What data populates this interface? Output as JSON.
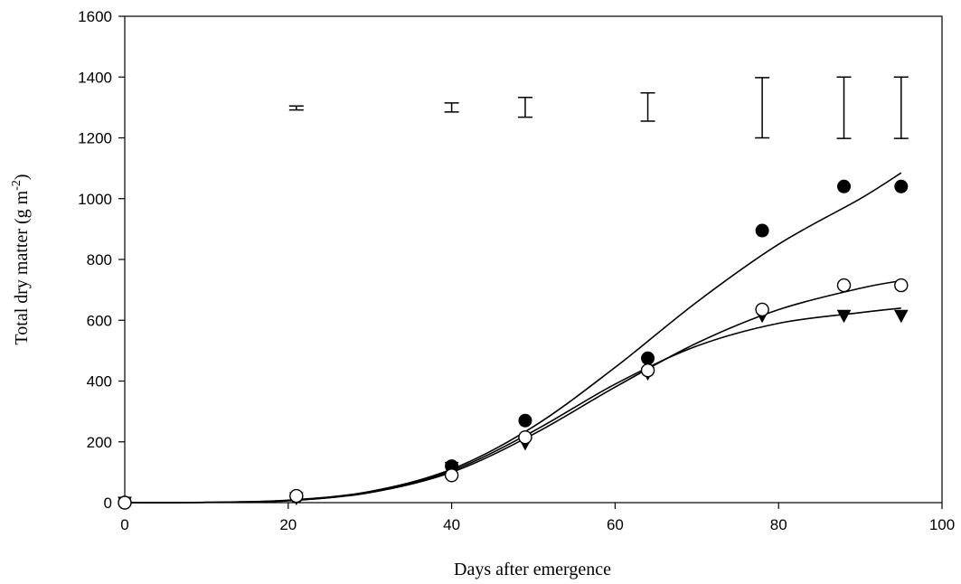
{
  "chart_data": {
    "type": "scatter",
    "title": "",
    "xlabel": "Days after emergence",
    "ylabel_main": "Total dry matter (g m",
    "ylabel_sup": "-2",
    "ylabel_tail": ")",
    "xlim": [
      0,
      100
    ],
    "ylim": [
      0,
      1600
    ],
    "xticks": [
      0,
      20,
      40,
      60,
      80,
      100
    ],
    "yticks": [
      0,
      200,
      400,
      600,
      800,
      1000,
      1200,
      1400,
      1600
    ],
    "grid": false,
    "legend": "none",
    "series": [
      {
        "marker": "filled-circle",
        "x": [
          0,
          21,
          40,
          49,
          64,
          78,
          88,
          95
        ],
        "y": [
          0,
          20,
          120,
          270,
          475,
          895,
          1040,
          1040
        ],
        "fit": [
          [
            0,
            0
          ],
          [
            10,
            1
          ],
          [
            20,
            8
          ],
          [
            30,
            37
          ],
          [
            40,
            110
          ],
          [
            50,
            250
          ],
          [
            60,
            445
          ],
          [
            70,
            660
          ],
          [
            80,
            850
          ],
          [
            90,
            1000
          ],
          [
            95,
            1085
          ]
        ]
      },
      {
        "marker": "open-circle",
        "x": [
          0,
          21,
          40,
          49,
          64,
          78,
          88,
          95
        ],
        "y": [
          0,
          22,
          90,
          215,
          435,
          635,
          715,
          715
        ],
        "fit": [
          [
            0,
            0
          ],
          [
            10,
            1
          ],
          [
            20,
            7
          ],
          [
            30,
            33
          ],
          [
            40,
            100
          ],
          [
            50,
            225
          ],
          [
            60,
            380
          ],
          [
            70,
            525
          ],
          [
            80,
            635
          ],
          [
            90,
            705
          ],
          [
            95,
            730
          ]
        ]
      },
      {
        "marker": "filled-triangle-down",
        "x": [
          0,
          21,
          40,
          49,
          64,
          78,
          88,
          95
        ],
        "y": [
          0,
          15,
          115,
          195,
          425,
          615,
          615,
          615
        ],
        "fit": [
          [
            0,
            0
          ],
          [
            10,
            1
          ],
          [
            20,
            6
          ],
          [
            30,
            35
          ],
          [
            40,
            105
          ],
          [
            50,
            235
          ],
          [
            60,
            390
          ],
          [
            70,
            515
          ],
          [
            80,
            590
          ],
          [
            90,
            625
          ],
          [
            95,
            640
          ]
        ]
      }
    ],
    "error_bars": [
      {
        "x": 21,
        "low": 1292,
        "high": 1305
      },
      {
        "x": 40,
        "low": 1285,
        "high": 1315
      },
      {
        "x": 49,
        "low": 1268,
        "high": 1333
      },
      {
        "x": 64,
        "low": 1255,
        "high": 1348
      },
      {
        "x": 78,
        "low": 1200,
        "high": 1398
      },
      {
        "x": 88,
        "low": 1198,
        "high": 1400
      },
      {
        "x": 95,
        "low": 1198,
        "high": 1400
      }
    ]
  }
}
